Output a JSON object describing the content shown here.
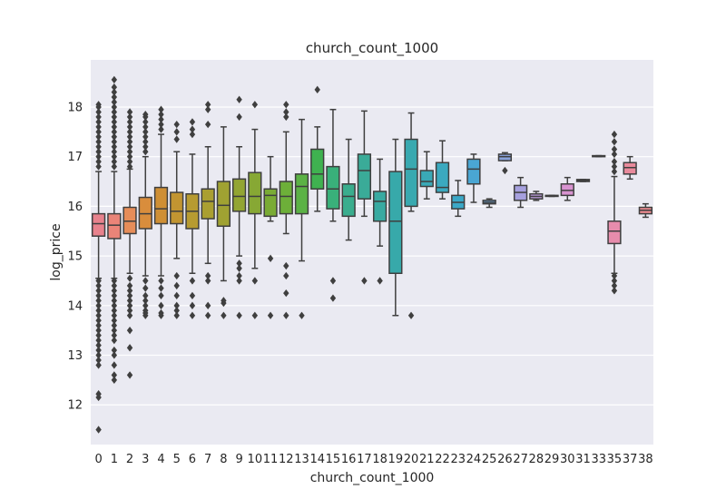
{
  "chart_data": {
    "type": "box",
    "title": "church_count_1000",
    "xlabel": "church_count_1000",
    "ylabel": "log_price",
    "ylim": [
      11.2,
      18.95
    ],
    "yticks": [
      12,
      13,
      14,
      15,
      16,
      17,
      18
    ],
    "grid": true,
    "categories": [
      "0",
      "1",
      "2",
      "3",
      "4",
      "5",
      "6",
      "7",
      "8",
      "9",
      "10",
      "11",
      "12",
      "13",
      "14",
      "15",
      "16",
      "17",
      "18",
      "19",
      "20",
      "21",
      "22",
      "23",
      "24",
      "25",
      "26",
      "27",
      "28",
      "29",
      "30",
      "31",
      "33",
      "35",
      "37",
      "38"
    ],
    "colors": [
      "#e8828d",
      "#ea8478",
      "#e68d59",
      "#d98d3c",
      "#cf8f34",
      "#c29531",
      "#b79b31",
      "#aa9f31",
      "#a0a232",
      "#93a533",
      "#87a834",
      "#7aab35",
      "#6daf39",
      "#5bb245",
      "#3fb250",
      "#39b07a",
      "#3aad8e",
      "#3aab98",
      "#38aaa1",
      "#37a9aa",
      "#39a9b0",
      "#3aa9b7",
      "#3ba9bf",
      "#3ba8c7",
      "#4aa6d3",
      "#6ca5d8",
      "#8aa3dc",
      "#a6a0de",
      "#bc9ddc",
      "#cc98d8",
      "#d893d0",
      "#e18fc6",
      "#e58fbd",
      "#e78cac",
      "#e98a9c",
      "#e9898f"
    ],
    "boxes": [
      {
        "q1": 15.4,
        "median": 15.65,
        "q3": 15.85,
        "whisker_low": 14.55,
        "whisker_high": 16.7,
        "outliers": [
          11.5,
          12.15,
          12.22,
          12.8,
          12.9,
          13.0,
          13.1,
          13.2,
          13.3,
          13.4,
          13.5,
          13.6,
          13.7,
          13.8,
          13.9,
          14.0,
          14.1,
          14.2,
          14.3,
          14.4,
          14.5,
          16.8,
          16.9,
          17.0,
          17.1,
          17.2,
          17.3,
          17.4,
          17.5,
          17.6,
          17.7,
          17.8,
          17.9,
          18.0,
          18.05
        ]
      },
      {
        "q1": 15.35,
        "median": 15.62,
        "q3": 15.85,
        "whisker_low": 14.55,
        "whisker_high": 16.7,
        "outliers": [
          12.5,
          12.6,
          12.8,
          13.0,
          13.1,
          13.3,
          13.4,
          13.5,
          13.6,
          13.7,
          13.8,
          13.9,
          14.0,
          14.1,
          14.2,
          14.3,
          14.4,
          14.5,
          16.8,
          16.9,
          17.0,
          17.1,
          17.2,
          17.3,
          17.4,
          17.5,
          17.6,
          17.7,
          17.8,
          17.9,
          18.0,
          18.1,
          18.2,
          18.3,
          18.4,
          18.55
        ]
      },
      {
        "q1": 15.45,
        "median": 15.7,
        "q3": 15.98,
        "whisker_low": 14.65,
        "whisker_high": 16.75,
        "outliers": [
          12.6,
          13.15,
          13.5,
          13.8,
          13.9,
          14.0,
          14.1,
          14.2,
          14.3,
          14.4,
          14.55,
          16.8,
          16.9,
          17.0,
          17.1,
          17.2,
          17.3,
          17.4,
          17.5,
          17.6,
          17.7,
          17.8,
          17.9
        ]
      },
      {
        "q1": 15.55,
        "median": 15.85,
        "q3": 16.18,
        "whisker_low": 14.6,
        "whisker_high": 17.0,
        "outliers": [
          13.8,
          13.85,
          13.9,
          14.0,
          14.1,
          14.2,
          14.35,
          14.5,
          17.1,
          17.2,
          17.3,
          17.4,
          17.5,
          17.6,
          17.7,
          17.8,
          17.85
        ]
      },
      {
        "q1": 15.65,
        "median": 15.95,
        "q3": 16.38,
        "whisker_low": 14.6,
        "whisker_high": 17.45,
        "outliers": [
          13.8,
          13.85,
          14.0,
          14.2,
          14.35,
          14.5,
          17.55,
          17.65,
          17.75,
          17.85,
          17.95
        ]
      },
      {
        "q1": 15.65,
        "median": 15.9,
        "q3": 16.28,
        "whisker_low": 14.95,
        "whisker_high": 17.1,
        "outliers": [
          13.8,
          13.9,
          14.0,
          14.2,
          14.4,
          14.6,
          17.35,
          17.5,
          17.65
        ]
      },
      {
        "q1": 15.55,
        "median": 15.9,
        "q3": 16.25,
        "whisker_low": 14.65,
        "whisker_high": 17.05,
        "outliers": [
          13.8,
          14.0,
          14.2,
          14.5,
          17.45,
          17.55,
          17.7
        ]
      },
      {
        "q1": 15.75,
        "median": 16.1,
        "q3": 16.35,
        "whisker_low": 14.85,
        "whisker_high": 17.2,
        "outliers": [
          13.8,
          14.0,
          14.5,
          14.6,
          17.65,
          17.95,
          18.05
        ]
      },
      {
        "q1": 15.6,
        "median": 16.02,
        "q3": 16.5,
        "whisker_low": 14.5,
        "whisker_high": 17.6,
        "outliers": [
          13.8,
          14.05,
          14.1
        ]
      },
      {
        "q1": 15.9,
        "median": 16.2,
        "q3": 16.55,
        "whisker_low": 15.0,
        "whisker_high": 17.2,
        "outliers": [
          13.8,
          14.5,
          14.6,
          14.75,
          14.85,
          17.8,
          18.15
        ]
      },
      {
        "q1": 15.85,
        "median": 16.2,
        "q3": 16.68,
        "whisker_low": 14.75,
        "whisker_high": 17.55,
        "outliers": [
          13.8,
          14.5,
          18.05
        ]
      },
      {
        "q1": 15.8,
        "median": 16.22,
        "q3": 16.35,
        "whisker_low": 15.7,
        "whisker_high": 17.0,
        "outliers": [
          13.8,
          14.95
        ]
      },
      {
        "q1": 15.85,
        "median": 16.2,
        "q3": 16.5,
        "whisker_low": 15.45,
        "whisker_high": 17.5,
        "outliers": [
          13.8,
          14.25,
          14.6,
          14.8,
          17.8,
          17.9,
          18.05
        ]
      },
      {
        "q1": 15.85,
        "median": 16.4,
        "q3": 16.65,
        "whisker_low": 14.9,
        "whisker_high": 17.75,
        "outliers": [
          13.8
        ]
      },
      {
        "q1": 16.35,
        "median": 16.65,
        "q3": 17.15,
        "whisker_low": 15.9,
        "whisker_high": 17.6,
        "outliers": [
          18.35
        ]
      },
      {
        "q1": 15.95,
        "median": 16.35,
        "q3": 16.8,
        "whisker_low": 15.7,
        "whisker_high": 17.95,
        "outliers": [
          14.15,
          14.5
        ]
      },
      {
        "q1": 15.8,
        "median": 16.2,
        "q3": 16.45,
        "whisker_low": 15.32,
        "whisker_high": 17.35,
        "outliers": []
      },
      {
        "q1": 16.15,
        "median": 16.72,
        "q3": 17.05,
        "whisker_low": 15.8,
        "whisker_high": 17.92,
        "outliers": [
          14.5
        ]
      },
      {
        "q1": 15.7,
        "median": 16.1,
        "q3": 16.3,
        "whisker_low": 15.2,
        "whisker_high": 16.95,
        "outliers": [
          14.5
        ]
      },
      {
        "q1": 14.65,
        "median": 15.7,
        "q3": 16.7,
        "whisker_low": 13.8,
        "whisker_high": 17.35,
        "outliers": []
      },
      {
        "q1": 16.0,
        "median": 16.75,
        "q3": 17.35,
        "whisker_low": 15.9,
        "whisker_high": 17.88,
        "outliers": [
          13.8
        ]
      },
      {
        "q1": 16.4,
        "median": 16.5,
        "q3": 16.72,
        "whisker_low": 16.15,
        "whisker_high": 17.1,
        "outliers": []
      },
      {
        "q1": 16.28,
        "median": 16.38,
        "q3": 16.88,
        "whisker_low": 16.15,
        "whisker_high": 17.32,
        "outliers": []
      },
      {
        "q1": 15.95,
        "median": 16.08,
        "q3": 16.22,
        "whisker_low": 15.8,
        "whisker_high": 16.52,
        "outliers": []
      },
      {
        "q1": 16.45,
        "median": 16.75,
        "q3": 16.95,
        "whisker_low": 16.08,
        "whisker_high": 17.05,
        "outliers": []
      },
      {
        "q1": 16.05,
        "median": 16.08,
        "q3": 16.12,
        "whisker_low": 15.98,
        "whisker_high": 16.15,
        "outliers": []
      },
      {
        "q1": 16.92,
        "median": 17.0,
        "q3": 17.05,
        "whisker_low": 16.92,
        "whisker_high": 17.08,
        "outliers": [
          16.72
        ]
      },
      {
        "q1": 16.12,
        "median": 16.28,
        "q3": 16.42,
        "whisker_low": 15.98,
        "whisker_high": 16.58,
        "outliers": []
      },
      {
        "q1": 16.15,
        "median": 16.2,
        "q3": 16.25,
        "whisker_low": 16.12,
        "whisker_high": 16.3,
        "outliers": []
      },
      {
        "q1": 16.2,
        "median": 16.21,
        "q3": 16.22,
        "whisker_low": 16.2,
        "whisker_high": 16.22,
        "outliers": []
      },
      {
        "q1": 16.22,
        "median": 16.32,
        "q3": 16.45,
        "whisker_low": 16.12,
        "whisker_high": 16.58,
        "outliers": []
      },
      {
        "q1": 16.5,
        "median": 16.52,
        "q3": 16.54,
        "whisker_low": 16.5,
        "whisker_high": 16.54,
        "outliers": []
      },
      {
        "q1": 17.0,
        "median": 17.01,
        "q3": 17.02,
        "whisker_low": 17.0,
        "whisker_high": 17.02,
        "outliers": []
      },
      {
        "q1": 15.25,
        "median": 15.5,
        "q3": 15.7,
        "whisker_low": 14.65,
        "whisker_high": 16.6,
        "outliers": [
          14.3,
          14.4,
          14.5,
          14.6,
          16.7,
          16.8,
          16.9,
          17.05,
          17.15,
          17.3,
          17.45
        ]
      },
      {
        "q1": 16.65,
        "median": 16.78,
        "q3": 16.88,
        "whisker_low": 16.55,
        "whisker_high": 17.0,
        "outliers": []
      },
      {
        "q1": 15.85,
        "median": 15.92,
        "q3": 15.98,
        "whisker_low": 15.78,
        "whisker_high": 16.05,
        "outliers": []
      }
    ]
  }
}
